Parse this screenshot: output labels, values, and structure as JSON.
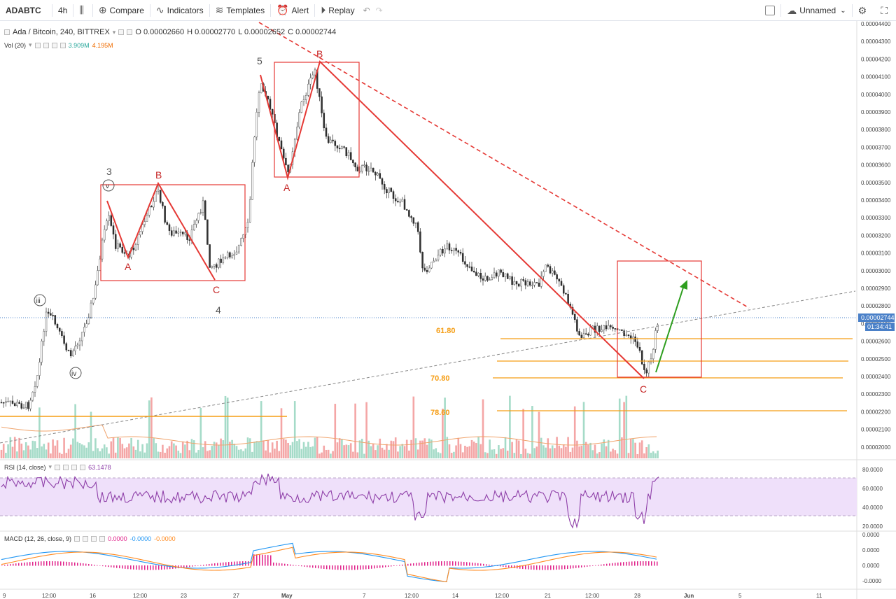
{
  "toolbar": {
    "symbol": "ADABTC",
    "interval": "4h",
    "compare_label": "Compare",
    "indicators_label": "Indicators",
    "templates_label": "Templates",
    "alert_label": "Alert",
    "replay_label": "Replay",
    "layout_name": "Unnamed"
  },
  "legend": {
    "title": "Ada / Bitcoin, 240, BITTREX",
    "open": "O 0.00002660",
    "high": "H 0.00002770",
    "low": "L 0.00002652",
    "close": "C 0.00002744",
    "vol_label": "Vol (20)",
    "vol_a": "3.909M",
    "vol_b": "4.195M"
  },
  "rsi": {
    "label": "RSI (14, close)",
    "value": "63.1478"
  },
  "macd": {
    "label": "MACD (12, 26, close, 9)",
    "v1": "0.0000",
    "v2": "-0.0000",
    "v3": "-0.0000"
  },
  "price_axis": [
    "0.00004400",
    "0.00004300",
    "0.00004200",
    "0.00004100",
    "0.00004000",
    "0.00003900",
    "0.00003800",
    "0.00003700",
    "0.00003600",
    "0.00003500",
    "0.00003400",
    "0.00003300",
    "0.00003200",
    "0.00003100",
    "0.00003000",
    "0.00002900",
    "0.00002800",
    "0.00002700",
    "0.00002600",
    "0.00002500",
    "0.00002400",
    "0.00002300",
    "0.00002200",
    "0.00002100",
    "0.00002000"
  ],
  "current_price": "0.00002744",
  "countdown": "01:34:41",
  "rsi_axis": [
    "80.0000",
    "60.0000",
    "40.0000",
    "20.0000"
  ],
  "macd_axis": [
    "0.0000",
    "0.0000",
    "0.0000",
    "-0.0000"
  ],
  "time_axis": [
    "9",
    "12:00",
    "16",
    "12:00",
    "23",
    "27",
    "May",
    "7",
    "12:00",
    "14",
    "12:00",
    "21",
    "12:00",
    "28",
    "Jun",
    "5",
    "11"
  ],
  "fib_levels": [
    "61.80",
    "70.80",
    "78.60"
  ],
  "wave_labels": {
    "w3": "3",
    "w4": "4",
    "w5": "5",
    "wiii": "iii",
    "wiv": "iv",
    "wv": "v",
    "a1": "A",
    "b1": "B",
    "c1": "C",
    "a2": "A",
    "b2": "B",
    "c3": "C"
  },
  "colors": {
    "up": "#26a69a",
    "down": "#ef5350",
    "wave": "#e53935",
    "fib": "#f59d14",
    "arrow": "#2e9e1f",
    "rsi_line": "#8e3fa8",
    "rsi_band": "#efe0fa",
    "macd_line": "#2196f3",
    "signal_line": "#ff8a1f",
    "hist": "#e0218a"
  }
}
